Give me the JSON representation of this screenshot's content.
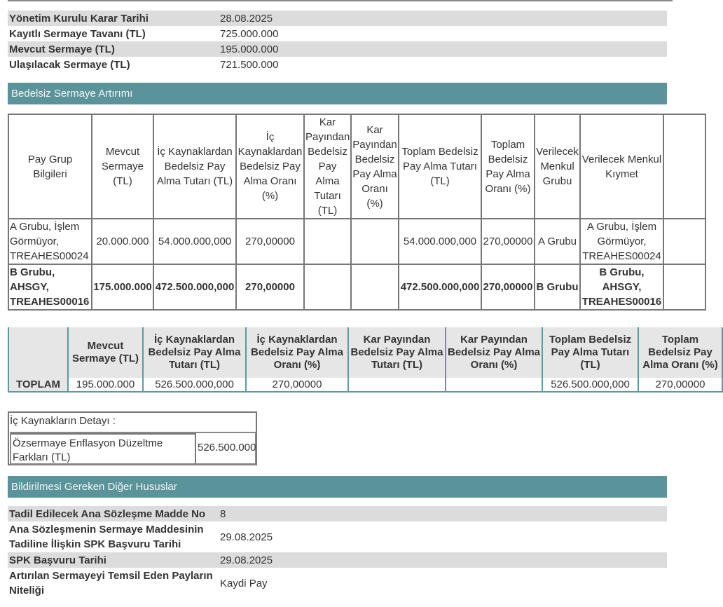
{
  "summary": [
    {
      "label": "Yönetim Kurulu Karar Tarihi",
      "value": "28.08.2025"
    },
    {
      "label": "Kayıtlı Sermaye Tavanı (TL)",
      "value": "725.000.000"
    },
    {
      "label": "Mevcut Sermaye (TL)",
      "value": "195.000.000"
    },
    {
      "label": "Ulaşılacak Sermaye (TL)",
      "value": "721.500.000"
    }
  ],
  "section1_title": "Bedelsiz Sermaye Artırımı",
  "main_table": {
    "headers": [
      "Pay Grup Bilgileri",
      "Mevcut Sermaye (TL)",
      "İç Kaynaklardan Bedelsiz Pay Alma Tutarı (TL)",
      "İç Kaynaklardan Bedelsiz Pay Alma Oranı (%)",
      "Kar Payından Bedelsiz Pay Alma Tutarı (TL)",
      "Kar Payından Bedelsiz Pay Alma Oranı (%)",
      "Toplam Bedelsiz Pay Alma Tutarı (TL)",
      "Toplam Bedelsiz Pay Alma Oranı (%)",
      "Verilecek Menkul Grubu",
      "Verilecek Menkul Kıymet",
      ""
    ],
    "rows": [
      [
        "A Grubu, İşlem Görmüyor, TREAHES00024",
        "20.000.000",
        "54.000.000,000",
        "270,00000",
        "",
        "",
        "54.000.000,000",
        "270,00000",
        "A Grubu",
        "A Grubu, İşlem Görmüyor, TREAHES00024",
        ""
      ],
      [
        "B Grubu, AHSGY, TREAHES00016",
        "175.000.000",
        "472.500.000,000",
        "270,00000",
        "",
        "",
        "472.500.000,000",
        "270,00000",
        "B Grubu",
        "B Grubu, AHSGY, TREAHES00016",
        ""
      ]
    ]
  },
  "total_table": {
    "headers": [
      "",
      "Mevcut Sermaye (TL)",
      "İç Kaynaklardan Bedelsiz Pay Alma Tutarı (TL)",
      "İç Kaynaklardan Bedelsiz Pay Alma Oranı (%)",
      "Kar Payından Bedelsiz Pay Alma Tutarı (TL)",
      "Kar Payından Bedelsiz Pay Alma Oranı (%)",
      "Toplam Bedelsiz Pay Alma Tutarı (TL)",
      "Toplam Bedelsiz Pay Alma Oranı (%)"
    ],
    "row": [
      "TOPLAM",
      "195.000.000",
      "526.500.000,000",
      "270,00000",
      "",
      "",
      "526.500.000,000",
      "270,00000"
    ]
  },
  "detail": {
    "title": "İç Kaynakların Detayı :",
    "item_label": "Özsermaye Enflasyon Düzeltme Farkları (TL)",
    "item_value": "526.500.000"
  },
  "section2_title": "Bildirilmesi Gereken Diğer Hususlar",
  "other": [
    {
      "label": "Tadil Edilecek Ana Sözleşme Madde No",
      "value": "8"
    },
    {
      "label": "Ana Sözleşmenin Sermaye Maddesinin Tadiline İlişkin SPK Başvuru Tarihi",
      "value": "29.08.2025"
    },
    {
      "label": "SPK Başvuru Tarihi",
      "value": "29.08.2025"
    },
    {
      "label": "Artırılan Sermayeyi Temsil Eden Payların Niteliği",
      "value": "Kaydi Pay"
    }
  ],
  "colors": {
    "section": "#5a9399",
    "row_alt": "#dcdcdc",
    "total_border": "#5b9aa0"
  }
}
